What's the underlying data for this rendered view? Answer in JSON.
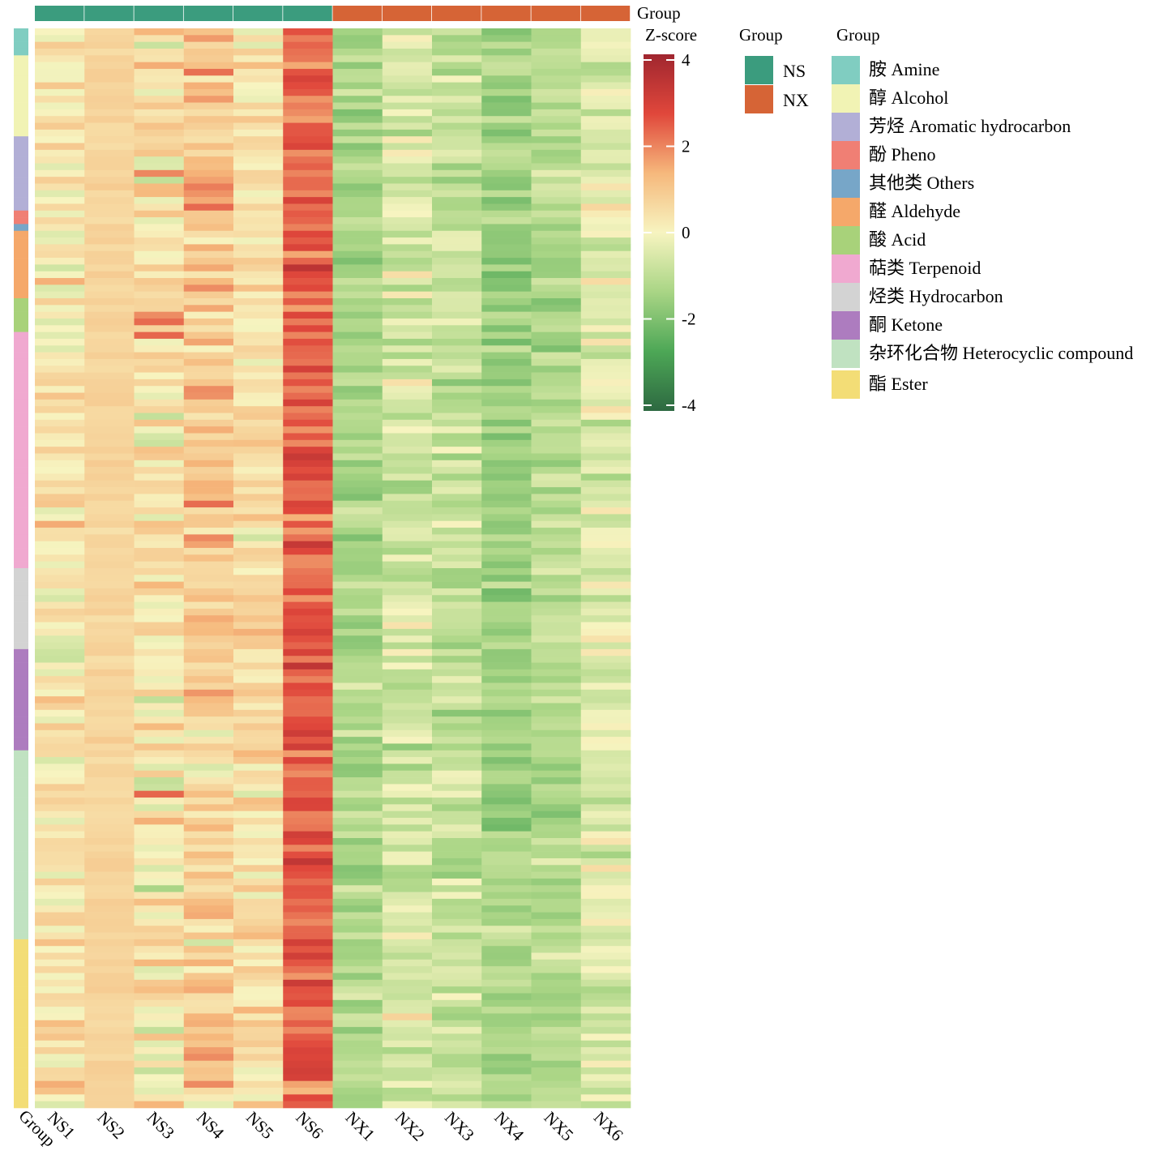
{
  "chart_data": {
    "type": "heatmap",
    "title": "",
    "columns": [
      "NS1",
      "NS2",
      "NS3",
      "NS4",
      "NS5",
      "NS6",
      "NX1",
      "NX2",
      "NX3",
      "NX4",
      "NX5",
      "NX6"
    ],
    "column_groups": [
      "NS",
      "NS",
      "NS",
      "NS",
      "NS",
      "NS",
      "NX",
      "NX",
      "NX",
      "NX",
      "NX",
      "NX"
    ],
    "row_annotation_label": "Group",
    "column_annotation_label": "Group",
    "row_count": 160,
    "row_blocks": [
      {
        "category": "胺 Amine",
        "rows": 4
      },
      {
        "category": "醇 Alcohol",
        "rows": 12
      },
      {
        "category": "芳烃 Aromatic hydrocarbon",
        "rows": 11
      },
      {
        "category": "酚 Pheno",
        "rows": 2
      },
      {
        "category": "其他类 Others",
        "rows": 1
      },
      {
        "category": "醛 Aldehyde",
        "rows": 10
      },
      {
        "category": "酸 Acid",
        "rows": 5
      },
      {
        "category": "萜类 Terpenoid",
        "rows": 35
      },
      {
        "category": "烃类 Hydrocarbon",
        "rows": 12
      },
      {
        "category": "酮 Ketone",
        "rows": 15
      },
      {
        "category": "杂环化合物 Heterocyclic compound",
        "rows": 28
      },
      {
        "category": "酯 Ester",
        "rows": 25
      }
    ],
    "column_mean_zscore": [
      0.3,
      0.7,
      0.4,
      0.9,
      0.4,
      2.4,
      -1.2,
      -0.6,
      -0.9,
      -1.4,
      -1.1,
      -0.4
    ],
    "column_spread": [
      0.7,
      0.15,
      1.0,
      0.8,
      0.6,
      0.6,
      0.5,
      0.7,
      0.6,
      0.5,
      0.5,
      0.6
    ],
    "colorbar": {
      "title": "Z-score",
      "range": [
        -4,
        4
      ],
      "ticks": [
        4,
        2,
        0,
        -2,
        -4
      ],
      "tick_labels": [
        "4",
        "2",
        "0",
        "-2",
        "-4"
      ],
      "colors": [
        "#2d6941",
        "#4da756",
        "#a9d585",
        "#f7f4c0",
        "#f6b87c",
        "#e0473b",
        "#a0262f"
      ]
    },
    "legend_group": {
      "title": "Group",
      "entries": [
        {
          "label": "NS",
          "color": "#3b9c7e"
        },
        {
          "label": "NX",
          "color": "#d66436"
        }
      ]
    },
    "legend_category": {
      "title": "Group",
      "entries": [
        {
          "label": "胺 Amine",
          "color": "#80cdc1"
        },
        {
          "label": "醇 Alcohol",
          "color": "#f1f3b4"
        },
        {
          "label": "芳烃 Aromatic hydrocarbon",
          "color": "#b2afd6"
        },
        {
          "label": "酚 Pheno",
          "color": "#f07f74"
        },
        {
          "label": "其他类 Others",
          "color": "#77a6c8"
        },
        {
          "label": "醛 Aldehyde",
          "color": "#f5a86a"
        },
        {
          "label": "酸 Acid",
          "color": "#a8d27a"
        },
        {
          "label": "萜类 Terpenoid",
          "color": "#f0a9d0"
        },
        {
          "label": "烃类 Hydrocarbon",
          "color": "#d3d3d3"
        },
        {
          "label": "酮 Ketone",
          "color": "#ad7cbf"
        },
        {
          "label": "杂环化合物 Heterocyclic compound",
          "color": "#c0e2c1"
        },
        {
          "label": "酯 Ester",
          "color": "#f3dd76"
        }
      ]
    }
  }
}
